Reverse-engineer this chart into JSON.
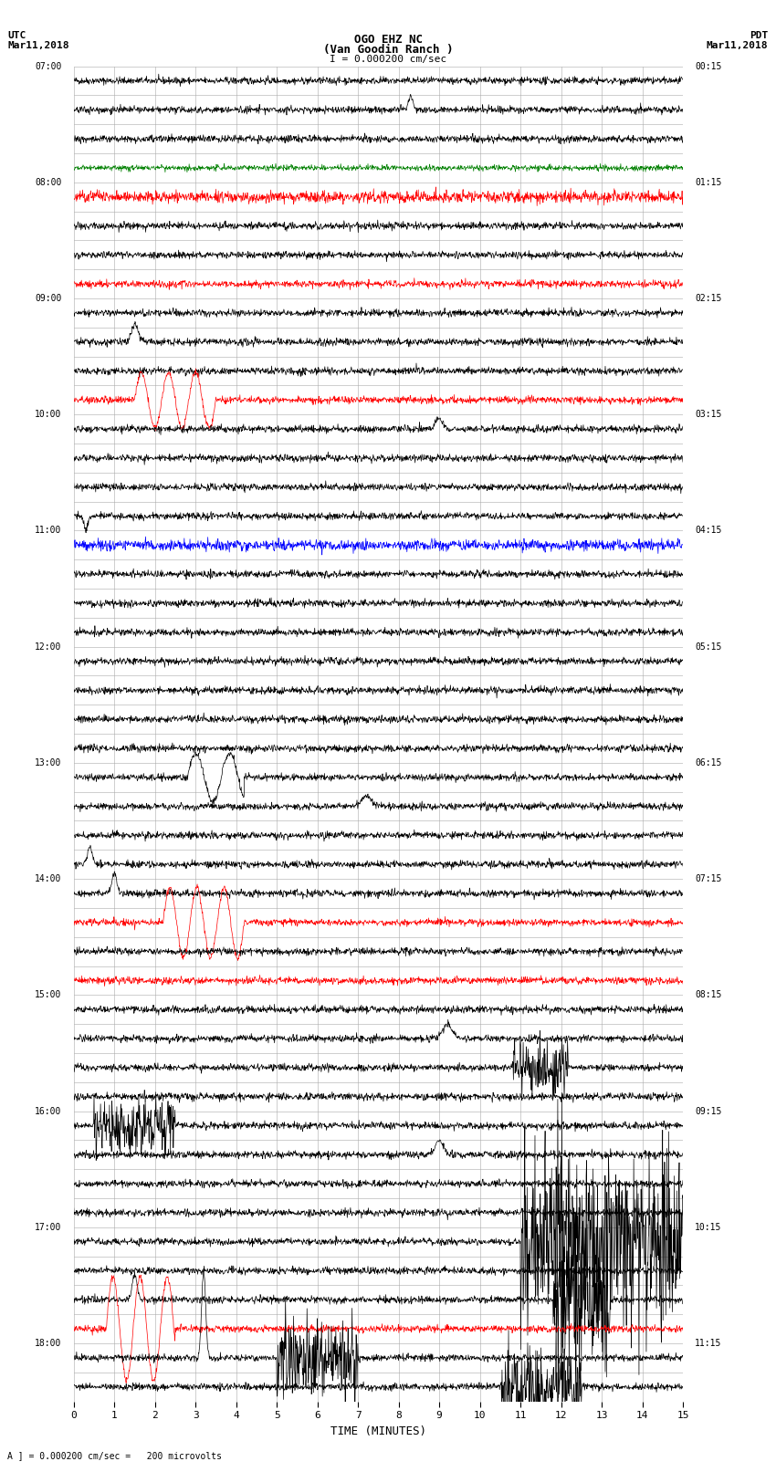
{
  "title_line1": "OGO EHZ NC",
  "title_line2": "(Van Goodin Ranch )",
  "title_line3": "I = 0.000200 cm/sec",
  "left_label_top": "UTC",
  "left_label_date": "Mar11,2018",
  "right_label_top": "PDT",
  "right_label_date": "Mar11,2018",
  "xlabel": "TIME (MINUTES)",
  "footer": "A ] = 0.000200 cm/sec =   200 microvolts",
  "xlim": [
    0,
    15
  ],
  "xticks": [
    0,
    1,
    2,
    3,
    4,
    5,
    6,
    7,
    8,
    9,
    10,
    11,
    12,
    13,
    14,
    15
  ],
  "num_rows": 46,
  "bg_color": "#ffffff",
  "grid_color": "#aaaaaa",
  "noise_amplitude": 0.006,
  "seed": 42
}
